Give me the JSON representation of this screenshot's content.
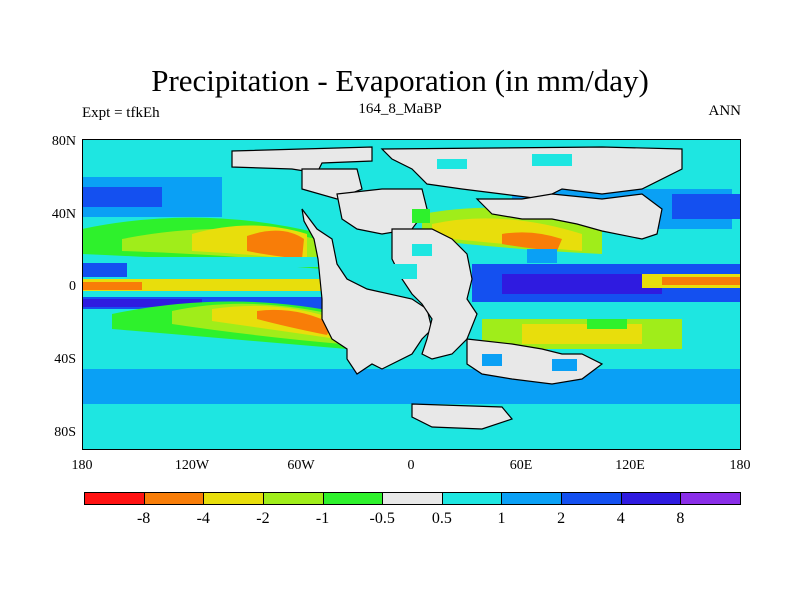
{
  "title": "Precipitation - Evaporation (in mm/day)",
  "left_label": "Expt = tfkEh",
  "center_label": "164_8_MaBP",
  "right_label": "ANN",
  "lat_ticks": [
    "80N",
    "40N",
    "0",
    "40S",
    "80S"
  ],
  "lon_ticks": [
    "180",
    "120W",
    "60W",
    "0",
    "60E",
    "120E",
    "180"
  ],
  "colorbar": {
    "colors": [
      "#ff1212",
      "#f87d08",
      "#e8de0c",
      "#a0ed1a",
      "#2ef12c",
      "#e8e8e8",
      "#1ee6e1",
      "#0aa0f5",
      "#1450f0",
      "#2f1be0",
      "#8a2ee8"
    ],
    "labels": [
      "-8",
      "-4",
      "-2",
      "-1",
      "-0.5",
      "0.5",
      "1",
      "2",
      "4",
      "8"
    ]
  },
  "legend_colors": {
    "land": "#e8e8e8",
    "coast": "#000000"
  }
}
